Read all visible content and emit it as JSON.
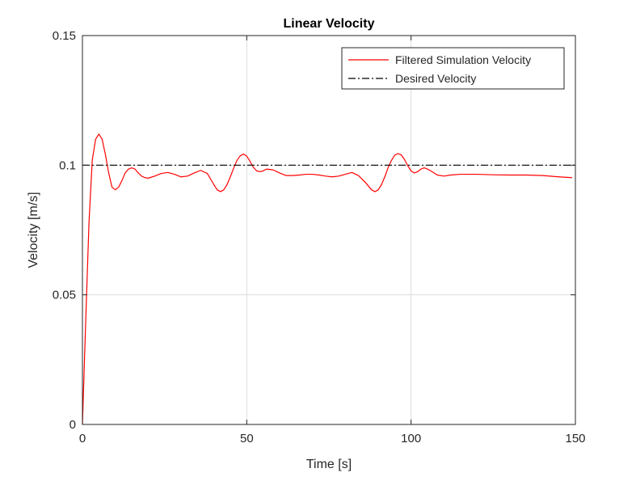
{
  "chart_data": {
    "type": "line",
    "title": "Linear Velocity",
    "xlabel": "Time [s]",
    "ylabel": "Velocity [m/s]",
    "xlim": [
      0,
      150
    ],
    "ylim": [
      0,
      0.15
    ],
    "xticks": [
      0,
      50,
      100,
      150
    ],
    "xtick_labels": [
      "0",
      "50",
      "100",
      "150"
    ],
    "yticks": [
      0,
      0.05,
      0.1,
      0.15
    ],
    "ytick_labels": [
      "0",
      "0.05",
      "0.1",
      "0.15"
    ],
    "grid": true,
    "legend_position": "top-right",
    "series": [
      {
        "name": "Filtered Simulation Velocity",
        "color": "#ff0000",
        "style": "solid",
        "x": [
          0,
          1,
          2,
          3,
          4,
          5,
          6,
          7,
          8,
          9,
          10,
          11,
          12,
          13,
          14,
          15,
          16,
          17,
          18,
          19,
          20,
          22,
          24,
          26,
          28,
          30,
          32,
          34,
          36,
          38,
          40,
          41,
          42,
          43,
          44,
          45,
          46,
          47,
          48,
          49,
          50,
          51,
          52,
          53,
          54,
          55,
          56,
          58,
          60,
          62,
          64,
          66,
          68,
          70,
          72,
          74,
          76,
          78,
          80,
          82,
          84,
          86,
          88,
          89,
          90,
          91,
          92,
          93,
          94,
          95,
          96,
          97,
          98,
          99,
          100,
          101,
          102,
          103,
          104,
          105,
          106,
          108,
          110,
          112,
          115,
          120,
          125,
          130,
          135,
          140,
          145,
          149
        ],
        "values": [
          0.0,
          0.04,
          0.078,
          0.102,
          0.11,
          0.112,
          0.11,
          0.104,
          0.097,
          0.0915,
          0.0905,
          0.0915,
          0.094,
          0.097,
          0.0985,
          0.099,
          0.0985,
          0.097,
          0.0958,
          0.0952,
          0.095,
          0.0958,
          0.0968,
          0.0972,
          0.0965,
          0.0955,
          0.0958,
          0.097,
          0.098,
          0.0968,
          0.0925,
          0.0905,
          0.0898,
          0.0905,
          0.0925,
          0.0955,
          0.0988,
          0.1018,
          0.1036,
          0.1043,
          0.1035,
          0.1015,
          0.0992,
          0.0978,
          0.0975,
          0.0978,
          0.0985,
          0.0982,
          0.097,
          0.096,
          0.096,
          0.0962,
          0.0965,
          0.0965,
          0.0962,
          0.0958,
          0.0955,
          0.0958,
          0.0965,
          0.0972,
          0.096,
          0.0935,
          0.0905,
          0.0898,
          0.0905,
          0.0925,
          0.0955,
          0.099,
          0.1018,
          0.1038,
          0.1045,
          0.104,
          0.1022,
          0.0998,
          0.0978,
          0.097,
          0.0975,
          0.0985,
          0.099,
          0.0985,
          0.0978,
          0.0962,
          0.0958,
          0.0962,
          0.0965,
          0.0965,
          0.0963,
          0.0962,
          0.0962,
          0.096,
          0.0955,
          0.0952
        ]
      },
      {
        "name": "Desired Velocity",
        "color": "#000000",
        "style": "dashdot",
        "x": [
          0,
          150
        ],
        "values": [
          0.1,
          0.1
        ]
      }
    ]
  }
}
